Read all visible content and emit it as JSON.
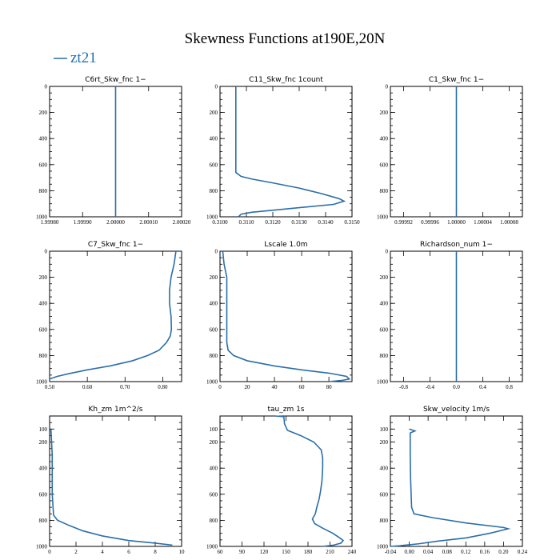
{
  "figure": {
    "title": "Skewness Functions at190E,20N",
    "legend": {
      "label": "zt21",
      "color": "#2b6ea8"
    }
  },
  "chart_data": [
    {
      "type": "line",
      "title": "C6rt_Skw_fnc   1−",
      "xlim": [
        1.9998,
        2.0002
      ],
      "ylim": [
        1000,
        0
      ],
      "xticks": [
        1.9998,
        1.9999,
        2.0,
        2.0001,
        2.0002
      ],
      "xtick_labels": [
        "1.99980",
        "1.99990",
        "2.00000",
        "2.00010",
        "2.00020"
      ],
      "yticks": [
        0,
        200,
        400,
        600,
        800,
        1000
      ],
      "series": [
        {
          "name": "zt21",
          "points": [
            [
              2.0,
              0
            ],
            [
              2.0,
              1000
            ]
          ]
        }
      ]
    },
    {
      "type": "line",
      "title": "C11_Skw_fnc   1count",
      "xlim": [
        0.31,
        0.315
      ],
      "ylim": [
        1000,
        0
      ],
      "xticks": [
        0.31,
        0.311,
        0.312,
        0.313,
        0.314,
        0.315
      ],
      "xtick_labels": [
        "0.3100",
        "0.3110",
        "0.3120",
        "0.3130",
        "0.3140",
        "0.3150"
      ],
      "yticks": [
        0,
        200,
        400,
        600,
        800,
        1000
      ],
      "series": [
        {
          "name": "zt21",
          "points": [
            [
              0.3106,
              0
            ],
            [
              0.3106,
              200
            ],
            [
              0.3106,
              400
            ],
            [
              0.3106,
              600
            ],
            [
              0.3106,
              660
            ],
            [
              0.3108,
              690
            ],
            [
              0.3112,
              710
            ],
            [
              0.312,
              740
            ],
            [
              0.313,
              780
            ],
            [
              0.3138,
              820
            ],
            [
              0.3145,
              860
            ],
            [
              0.3147,
              880
            ],
            [
              0.3143,
              905
            ],
            [
              0.313,
              930
            ],
            [
              0.312,
              950
            ],
            [
              0.3112,
              965
            ],
            [
              0.3108,
              980
            ],
            [
              0.3107,
              1000
            ]
          ]
        }
      ]
    },
    {
      "type": "line",
      "title": "C1_Skw_fnc   1−",
      "xlim": [
        0.9999,
        1.0001
      ],
      "ylim": [
        1000,
        0
      ],
      "xticks": [
        0.99992,
        0.99996,
        1.0,
        1.00004,
        1.00008
      ],
      "xtick_labels": [
        "0.99992",
        "0.99996",
        "1.00000",
        "1.00004",
        "1.00008"
      ],
      "yticks": [
        0,
        200,
        400,
        600,
        800,
        1000
      ],
      "series": [
        {
          "name": "zt21",
          "points": [
            [
              1.0,
              0
            ],
            [
              1.0,
              1000
            ]
          ]
        }
      ]
    },
    {
      "type": "line",
      "title": "C7_Skw_fnc   1−",
      "xlim": [
        0.5,
        0.85
      ],
      "ylim": [
        1000,
        0
      ],
      "xticks": [
        0.5,
        0.6,
        0.7,
        0.8
      ],
      "xtick_labels": [
        "0.50",
        "0.60",
        "0.70",
        "0.80"
      ],
      "yticks": [
        0,
        200,
        400,
        600,
        800,
        1000
      ],
      "series": [
        {
          "name": "zt21",
          "points": [
            [
              0.835,
              0
            ],
            [
              0.83,
              100
            ],
            [
              0.822,
              200
            ],
            [
              0.818,
              300
            ],
            [
              0.818,
              400
            ],
            [
              0.822,
              500
            ],
            [
              0.823,
              600
            ],
            [
              0.82,
              650
            ],
            [
              0.81,
              700
            ],
            [
              0.79,
              760
            ],
            [
              0.76,
              800
            ],
            [
              0.72,
              840
            ],
            [
              0.66,
              880
            ],
            [
              0.6,
              910
            ],
            [
              0.55,
              940
            ],
            [
              0.52,
              960
            ],
            [
              0.5,
              980
            ]
          ]
        }
      ]
    },
    {
      "type": "line",
      "title": "Lscale   1.0m",
      "xlim": [
        0,
        97
      ],
      "ylim": [
        1000,
        0
      ],
      "xticks": [
        0,
        20,
        40,
        60,
        80
      ],
      "xtick_labels": [
        "0",
        "20",
        "40",
        "60",
        "80"
      ],
      "yticks": [
        0,
        200,
        400,
        600,
        800,
        1000
      ],
      "series": [
        {
          "name": "zt21",
          "points": [
            [
              2,
              0
            ],
            [
              3,
              100
            ],
            [
              5,
              200
            ],
            [
              5,
              400
            ],
            [
              5,
              600
            ],
            [
              5,
              700
            ],
            [
              6,
              760
            ],
            [
              10,
              800
            ],
            [
              20,
              840
            ],
            [
              40,
              880
            ],
            [
              60,
              910
            ],
            [
              80,
              935
            ],
            [
              93,
              960
            ],
            [
              95,
              980
            ],
            [
              90,
              990
            ],
            [
              80,
              1000
            ]
          ]
        }
      ]
    },
    {
      "type": "line",
      "title": "Richardson_num   1−",
      "xlim": [
        -1,
        1
      ],
      "ylim": [
        1000,
        0
      ],
      "xticks": [
        -0.8,
        -0.4,
        0.0,
        0.4,
        0.8
      ],
      "xtick_labels": [
        "-0.8",
        "-0.4",
        "0.0",
        "0.4",
        "0.8"
      ],
      "yticks": [
        0,
        200,
        400,
        600,
        800,
        1000
      ],
      "series": [
        {
          "name": "zt21",
          "points": [
            [
              0.0,
              0
            ],
            [
              0.0,
              1000
            ]
          ]
        }
      ]
    },
    {
      "type": "line",
      "title": "Kh_zm   1m^2/s",
      "xlim": [
        0,
        10
      ],
      "ylim": [
        1000,
        0
      ],
      "xticks": [
        0,
        2,
        4,
        6,
        8,
        10
      ],
      "xtick_labels": [
        "0",
        "2",
        "4",
        "6",
        "8",
        "10"
      ],
      "yticks": [
        100,
        200,
        400,
        600,
        800,
        1000
      ],
      "series": [
        {
          "name": "zt21",
          "points": [
            [
              0.1,
              100
            ],
            [
              0.2,
              300
            ],
            [
              0.2,
              600
            ],
            [
              0.3,
              760
            ],
            [
              0.6,
              800
            ],
            [
              1.5,
              840
            ],
            [
              2.5,
              880
            ],
            [
              4,
              920
            ],
            [
              6,
              955
            ],
            [
              8,
              975
            ],
            [
              9.3,
              990
            ]
          ]
        }
      ]
    },
    {
      "type": "line",
      "title": "tau_zm   1s",
      "xlim": [
        60,
        240
      ],
      "ylim": [
        1000,
        0
      ],
      "xticks": [
        60,
        90,
        120,
        150,
        180,
        210,
        240
      ],
      "xtick_labels": [
        "60",
        "90",
        "120",
        "150",
        "180",
        "210",
        "240"
      ],
      "yticks": [
        100,
        200,
        400,
        600,
        800,
        1000
      ],
      "series": [
        {
          "name": "zt21",
          "points": [
            [
              135,
              0
            ],
            [
              147,
              5
            ],
            [
              148,
              60
            ],
            [
              152,
              110
            ],
            [
              170,
              150
            ],
            [
              188,
              200
            ],
            [
              198,
              260
            ],
            [
              200,
              320
            ],
            [
              200,
              400
            ],
            [
              199,
              500
            ],
            [
              197,
              580
            ],
            [
              195,
              640
            ],
            [
              192,
              700
            ],
            [
              190,
              750
            ],
            [
              186,
              790
            ],
            [
              189,
              825
            ],
            [
              200,
              860
            ],
            [
              214,
              900
            ],
            [
              222,
              930
            ],
            [
              228,
              955
            ],
            [
              225,
              975
            ],
            [
              215,
              990
            ],
            [
              200,
              1000
            ]
          ]
        }
      ]
    },
    {
      "type": "line",
      "title": "Skw_velocity   1m/s",
      "xlim": [
        -0.04,
        0.24
      ],
      "ylim": [
        1000,
        0
      ],
      "xticks": [
        -0.04,
        0.0,
        0.04,
        0.08,
        0.12,
        0.16,
        0.2,
        0.24
      ],
      "xtick_labels": [
        "-0.04",
        "0.00",
        "0.04",
        "0.08",
        "0.12",
        "0.16",
        "0.20",
        "0.24"
      ],
      "yticks": [
        100,
        200,
        400,
        600,
        800,
        1000
      ],
      "series": [
        {
          "name": "zt21",
          "points": [
            [
              0.0,
              100
            ],
            [
              0.012,
              115
            ],
            [
              0.002,
              130
            ],
            [
              0.002,
              300
            ],
            [
              0.003,
              500
            ],
            [
              0.005,
              700
            ],
            [
              0.01,
              750
            ],
            [
              0.05,
              780
            ],
            [
              0.12,
              820
            ],
            [
              0.2,
              855
            ],
            [
              0.21,
              865
            ],
            [
              0.17,
              900
            ],
            [
              0.12,
              935
            ],
            [
              0.06,
              960
            ],
            [
              0.02,
              980
            ],
            [
              -0.02,
              995
            ],
            [
              -0.04,
              1000
            ]
          ]
        }
      ]
    }
  ]
}
